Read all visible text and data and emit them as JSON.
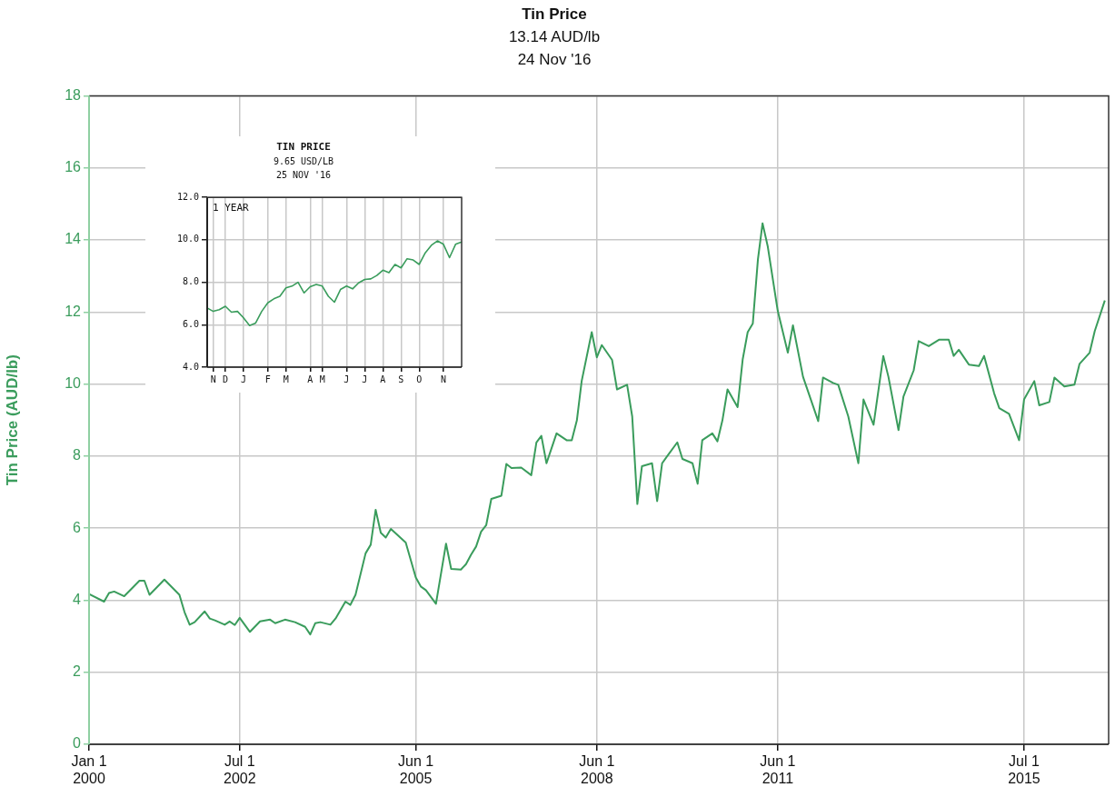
{
  "chart_data": [
    {
      "type": "line",
      "title": "Tin Price",
      "subtitle": "13.14 AUD/lb\n24 Nov '16",
      "ylabel": "Tin Price (AUD/lb)",
      "color": "#3a9c5c",
      "grid": true,
      "x": [
        "2000-01",
        "2000-04",
        "2000-05",
        "2000-06",
        "2000-08",
        "2000-11",
        "2000-12",
        "2001-01",
        "2001-04",
        "2001-07",
        "2001-08",
        "2001-09",
        "2001-10",
        "2001-12",
        "2002-01",
        "2002-02",
        "2002-04",
        "2002-05",
        "2002-06",
        "2002-07",
        "2002-09",
        "2002-11",
        "2003-01",
        "2003-02",
        "2003-04",
        "2003-06",
        "2003-08",
        "2003-09",
        "2003-10",
        "2003-11",
        "2004-01",
        "2004-02",
        "2004-04",
        "2004-05",
        "2004-06",
        "2004-08",
        "2004-09",
        "2004-10",
        "2004-11",
        "2004-12",
        "2005-01",
        "2005-04",
        "2005-06",
        "2005-07",
        "2005-08",
        "2005-10",
        "2005-12",
        "2006-01",
        "2006-03",
        "2006-04",
        "2006-05",
        "2006-06",
        "2006-07",
        "2006-08",
        "2006-09",
        "2006-11",
        "2006-12",
        "2007-01",
        "2007-03",
        "2007-05",
        "2007-06",
        "2007-07",
        "2007-08",
        "2007-10",
        "2007-12",
        "2008-01",
        "2008-02",
        "2008-03",
        "2008-05",
        "2008-06",
        "2008-07",
        "2008-09",
        "2008-10",
        "2008-12",
        "2009-01",
        "2009-02",
        "2009-03",
        "2009-05",
        "2009-06",
        "2009-07",
        "2009-08",
        "2009-10",
        "2009-11",
        "2010-01",
        "2010-02",
        "2010-03",
        "2010-05",
        "2010-06",
        "2010-07",
        "2010-08",
        "2010-10",
        "2010-11",
        "2010-12",
        "2011-01",
        "2011-02",
        "2011-03",
        "2011-04",
        "2011-06",
        "2011-08",
        "2011-09",
        "2011-11",
        "2012-02",
        "2012-03",
        "2012-05",
        "2012-06",
        "2012-08",
        "2012-10",
        "2012-11",
        "2013-01",
        "2013-03",
        "2013-04",
        "2013-06",
        "2013-07",
        "2013-09",
        "2013-10",
        "2013-12",
        "2014-02",
        "2014-04",
        "2014-05",
        "2014-06",
        "2014-08",
        "2014-10",
        "2014-11",
        "2015-01",
        "2015-02",
        "2015-04",
        "2015-06",
        "2015-07",
        "2015-09",
        "2015-10",
        "2015-12",
        "2016-01",
        "2016-03",
        "2016-05",
        "2016-06",
        "2016-08",
        "2016-09",
        "2016-11"
      ],
      "values": [
        4.17,
        3.96,
        4.2,
        4.24,
        4.11,
        4.54,
        4.54,
        4.15,
        4.57,
        4.15,
        3.67,
        3.32,
        3.39,
        3.69,
        3.49,
        3.44,
        3.32,
        3.41,
        3.31,
        3.51,
        3.12,
        3.41,
        3.46,
        3.36,
        3.46,
        3.39,
        3.26,
        3.05,
        3.36,
        3.39,
        3.32,
        3.49,
        3.96,
        3.87,
        4.15,
        5.3,
        5.54,
        6.51,
        5.87,
        5.74,
        5.98,
        5.6,
        4.63,
        4.38,
        4.28,
        3.9,
        5.57,
        4.87,
        4.85,
        5.0,
        5.26,
        5.49,
        5.9,
        6.08,
        6.81,
        6.9,
        7.78,
        7.67,
        7.68,
        7.47,
        8.38,
        8.56,
        7.8,
        8.63,
        8.44,
        8.44,
        8.99,
        10.08,
        11.44,
        10.74,
        11.08,
        10.67,
        9.85,
        9.98,
        9.1,
        6.67,
        7.72,
        7.8,
        6.75,
        7.8,
        8.0,
        8.38,
        7.92,
        7.8,
        7.23,
        8.44,
        8.63,
        8.41,
        8.99,
        9.85,
        9.36,
        10.69,
        11.44,
        11.68,
        13.46,
        14.46,
        13.83,
        12.03,
        10.87,
        11.63,
        10.2,
        8.97,
        10.18,
        10.03,
        9.98,
        9.1,
        7.8,
        9.57,
        8.87,
        10.78,
        10.2,
        8.72,
        9.65,
        10.38,
        11.19,
        11.05,
        11.23,
        11.23,
        10.78,
        10.95,
        10.54,
        10.5,
        10.78,
        9.74,
        9.33,
        9.17,
        8.44,
        9.57,
        10.08,
        9.41,
        9.5,
        10.18,
        9.93,
        9.98,
        10.56,
        10.87,
        11.47,
        12.32
      ],
      "xlim": [
        "2000-01-01",
        "2016-11-24"
      ],
      "xticks": [
        {
          "value": "2000-01-01",
          "label": "Jan 1\n2000"
        },
        {
          "value": "2002-07-01",
          "label": "Jul 1\n2002"
        },
        {
          "value": "2005-06-01",
          "label": "Jun 1\n2005"
        },
        {
          "value": "2008-06-01",
          "label": "Jun 1\n2008"
        },
        {
          "value": "2011-06-01",
          "label": "Jun 1\n2011"
        },
        {
          "value": "2015-07-01",
          "label": "Jul 1\n2015"
        }
      ],
      "ylim": [
        0,
        18
      ],
      "yticks": [
        0,
        2,
        4,
        6,
        8,
        10,
        12,
        14,
        16,
        18
      ]
    },
    {
      "type": "line",
      "title": "TIN PRICE",
      "subtitle": "9.65 USD/LB\n25 NOV '16",
      "annotations": [
        "1 YEAR"
      ],
      "color": "#3a9c5c",
      "grid": true,
      "categories": [
        null,
        "N",
        null,
        "D",
        null,
        null,
        "J",
        null,
        null,
        null,
        "F",
        null,
        null,
        "M",
        null,
        null,
        null,
        "A",
        null,
        "M",
        null,
        null,
        null,
        "J",
        null,
        null,
        "J",
        null,
        null,
        "A",
        null,
        null,
        "S",
        null,
        null,
        "O",
        null,
        null,
        null,
        "N",
        null,
        null,
        null
      ],
      "values": [
        6.79,
        6.63,
        6.71,
        6.87,
        6.59,
        6.63,
        6.32,
        5.96,
        6.08,
        6.63,
        7.03,
        7.22,
        7.34,
        7.74,
        7.82,
        8.0,
        7.5,
        7.79,
        7.9,
        7.82,
        7.34,
        7.06,
        7.66,
        7.82,
        7.69,
        7.97,
        8.13,
        8.16,
        8.32,
        8.57,
        8.45,
        8.84,
        8.68,
        9.11,
        9.05,
        8.84,
        9.39,
        9.74,
        9.95,
        9.79,
        9.16,
        9.79,
        9.9
      ],
      "ylim": [
        4,
        12
      ],
      "yticks": [
        {
          "value": 4,
          "label": "4.0"
        },
        {
          "value": 6,
          "label": "6.0"
        },
        {
          "value": 8,
          "label": "8.0"
        },
        {
          "value": 10,
          "label": "10.0"
        },
        {
          "value": 12,
          "label": "12.0"
        }
      ]
    }
  ]
}
